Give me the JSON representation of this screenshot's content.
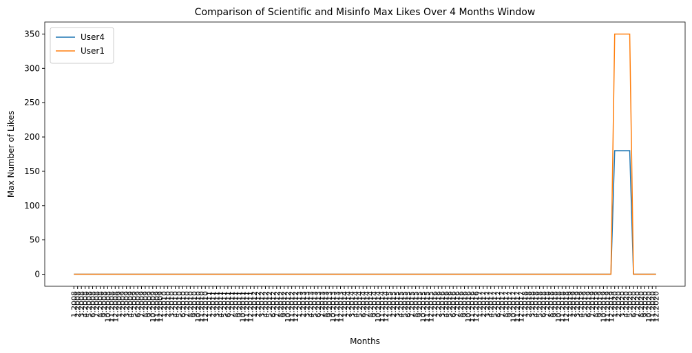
{
  "chart_data": {
    "type": "line",
    "title": "Comparison of Scientific and Misinfo Max Likes Over 4 Months Window",
    "x_label": "Months",
    "y_label": "Max Number of Likes",
    "categories": [
      "1.2008",
      "2.2008",
      "3.2008",
      "4.2008",
      "5.2008",
      "6.2008",
      "7.2008",
      "8.2008",
      "9.2008",
      "10.2008",
      "11.2008",
      "12.2008",
      "1.2009",
      "2.2009",
      "3.2009",
      "4.2009",
      "5.2009",
      "6.2009",
      "7.2009",
      "8.2009",
      "9.2009",
      "10.2009",
      "11.2009",
      "12.2009",
      "1.2010",
      "2.2010",
      "3.2010",
      "4.2010",
      "5.2010",
      "6.2010",
      "7.2010",
      "8.2010",
      "9.2010",
      "10.2010",
      "11.2010",
      "12.2010",
      "1.2011",
      "2.2011",
      "3.2011",
      "4.2011",
      "5.2011",
      "6.2011",
      "7.2011",
      "8.2011",
      "9.2011",
      "10.2011",
      "11.2011",
      "12.2011",
      "1.2012",
      "2.2012",
      "3.2012",
      "4.2012",
      "5.2012",
      "6.2012",
      "7.2012",
      "8.2012",
      "9.2012",
      "10.2012",
      "11.2012",
      "12.2012",
      "1.2013",
      "2.2013",
      "3.2013",
      "4.2013",
      "5.2013",
      "6.2013",
      "7.2013",
      "8.2013",
      "9.2013",
      "10.2013",
      "11.2013",
      "12.2013",
      "1.2014",
      "2.2014",
      "3.2014",
      "4.2014",
      "5.2014",
      "6.2014",
      "7.2014",
      "8.2014",
      "9.2014",
      "10.2014",
      "11.2014",
      "12.2014",
      "1.2015",
      "2.2015",
      "3.2015",
      "4.2015",
      "5.2015",
      "6.2015",
      "7.2015",
      "8.2015",
      "9.2015",
      "10.2015",
      "11.2015",
      "12.2015",
      "1.2016",
      "2.2016",
      "3.2016",
      "4.2016",
      "5.2016",
      "6.2016",
      "7.2016",
      "8.2016",
      "9.2016",
      "10.2016",
      "11.2016",
      "12.2016",
      "1.2017",
      "2.2017",
      "3.2017",
      "4.2017",
      "5.2017",
      "6.2017",
      "7.2017",
      "8.2017",
      "9.2017",
      "10.2017",
      "11.2017",
      "12.2017",
      "1.2018",
      "2.2018",
      "3.2018",
      "4.2018",
      "5.2018",
      "6.2018",
      "7.2018",
      "8.2018",
      "9.2018",
      "10.2018",
      "11.2018",
      "12.2018",
      "1.2019",
      "2.2019",
      "3.2019",
      "4.2019",
      "5.2019",
      "6.2019",
      "7.2019",
      "8.2019",
      "9.2019",
      "10.2019",
      "11.2019",
      "12.2019",
      "1.2020",
      "2.2020",
      "3.2020",
      "4.2020",
      "5.2020",
      "6.2020",
      "7.2020",
      "8.2020",
      "9.2020",
      "10.2020",
      "11.2020",
      "12.2020"
    ],
    "series": [
      {
        "name": "User4",
        "color": "#1f77b4",
        "values": [
          0,
          0,
          0,
          0,
          0,
          0,
          0,
          0,
          0,
          0,
          0,
          0,
          0,
          0,
          0,
          0,
          0,
          0,
          0,
          0,
          0,
          0,
          0,
          0,
          0,
          0,
          0,
          0,
          0,
          0,
          0,
          0,
          0,
          0,
          0,
          0,
          0,
          0,
          0,
          0,
          0,
          0,
          0,
          0,
          0,
          0,
          0,
          0,
          0,
          0,
          0,
          0,
          0,
          0,
          0,
          0,
          0,
          0,
          0,
          0,
          0,
          0,
          0,
          0,
          0,
          0,
          0,
          0,
          0,
          0,
          0,
          0,
          0,
          0,
          0,
          0,
          0,
          0,
          0,
          0,
          0,
          0,
          0,
          0,
          0,
          0,
          0,
          0,
          0,
          0,
          0,
          0,
          0,
          0,
          0,
          0,
          0,
          0,
          0,
          0,
          0,
          0,
          0,
          0,
          0,
          0,
          0,
          0,
          0,
          0,
          0,
          0,
          0,
          0,
          0,
          0,
          0,
          0,
          0,
          0,
          0,
          0,
          0,
          0,
          0,
          0,
          0,
          0,
          0,
          0,
          0,
          0,
          0,
          0,
          0,
          0,
          0,
          0,
          0,
          0,
          0,
          0,
          0,
          0,
          180,
          180,
          180,
          180,
          180,
          0,
          0,
          0,
          0,
          0,
          0,
          0
        ]
      },
      {
        "name": "User1",
        "color": "#ff7f0e",
        "values": [
          0,
          0,
          0,
          0,
          0,
          0,
          0,
          0,
          0,
          0,
          0,
          0,
          0,
          0,
          0,
          0,
          0,
          0,
          0,
          0,
          0,
          0,
          0,
          0,
          0,
          0,
          0,
          0,
          0,
          0,
          0,
          0,
          0,
          0,
          0,
          0,
          0,
          0,
          0,
          0,
          0,
          0,
          0,
          0,
          0,
          0,
          0,
          0,
          0,
          0,
          0,
          0,
          0,
          0,
          0,
          0,
          0,
          0,
          0,
          0,
          0,
          0,
          0,
          0,
          0,
          0,
          0,
          0,
          0,
          0,
          0,
          0,
          0,
          0,
          0,
          0,
          0,
          0,
          0,
          0,
          0,
          0,
          0,
          0,
          0,
          0,
          0,
          0,
          0,
          0,
          0,
          0,
          0,
          0,
          0,
          0,
          0,
          0,
          0,
          0,
          0,
          0,
          0,
          0,
          0,
          0,
          0,
          0,
          0,
          0,
          0,
          0,
          0,
          0,
          0,
          0,
          0,
          0,
          0,
          0,
          0,
          0,
          0,
          0,
          0,
          0,
          0,
          0,
          0,
          0,
          0,
          0,
          0,
          0,
          0,
          0,
          0,
          0,
          0,
          0,
          0,
          0,
          0,
          0,
          350,
          350,
          350,
          350,
          350,
          0,
          0,
          0,
          0,
          0,
          0,
          0
        ]
      }
    ],
    "ylim": [
      -17.5,
      367.5
    ],
    "yticks": [
      0,
      50,
      100,
      150,
      200,
      250,
      300,
      350
    ],
    "grid": false,
    "legend": "upper left"
  }
}
